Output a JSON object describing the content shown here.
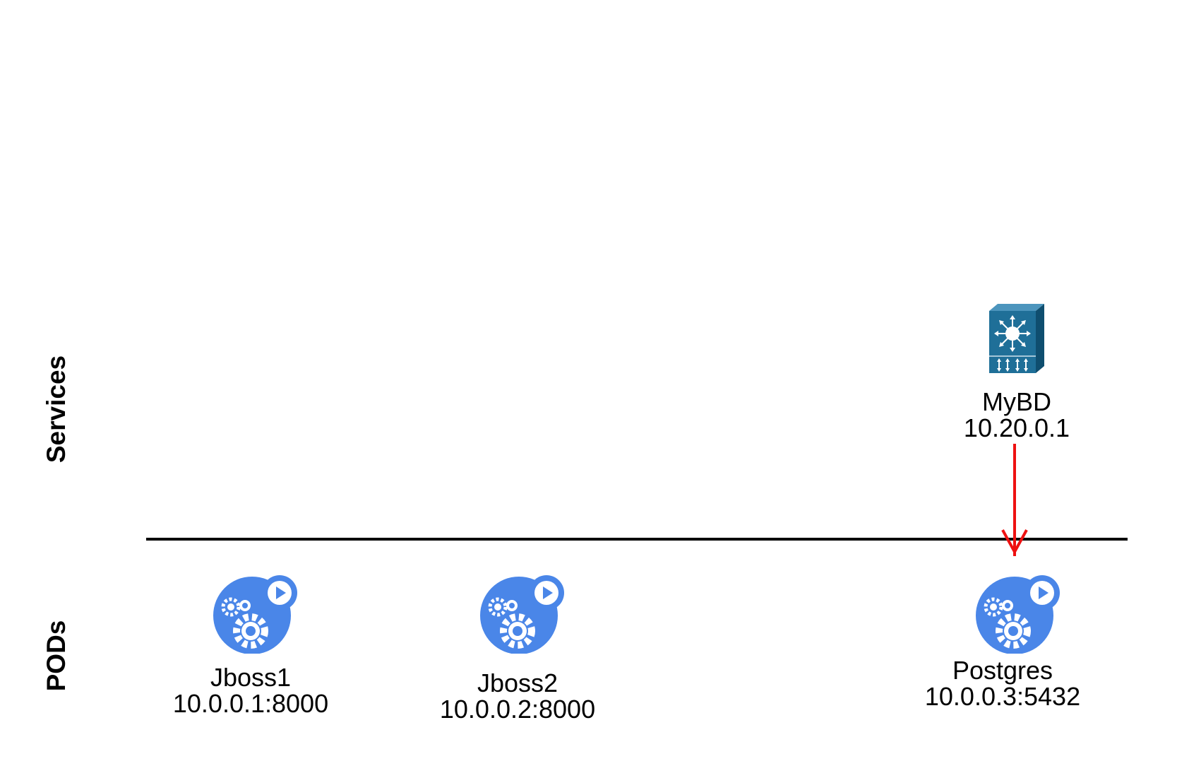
{
  "rows": {
    "services_label": "Services",
    "pods_label": "PODs"
  },
  "services": [
    {
      "name": "MyBD",
      "address": "10.20.0.1",
      "icon": "network-switch-icon",
      "icon_color": "#1f6f98"
    }
  ],
  "pods": [
    {
      "name": "Jboss1",
      "address": "10.0.0.1:8000",
      "icon": "pod-gears-icon"
    },
    {
      "name": "Jboss2",
      "address": "10.0.0.2:8000",
      "icon": "pod-gears-icon"
    },
    {
      "name": "Postgres",
      "address": "10.0.0.3:5432",
      "icon": "pod-gears-icon"
    }
  ],
  "colors": {
    "pod_icon": "#4a86e8",
    "arrow": "#ee1111",
    "divider": "#000000"
  }
}
